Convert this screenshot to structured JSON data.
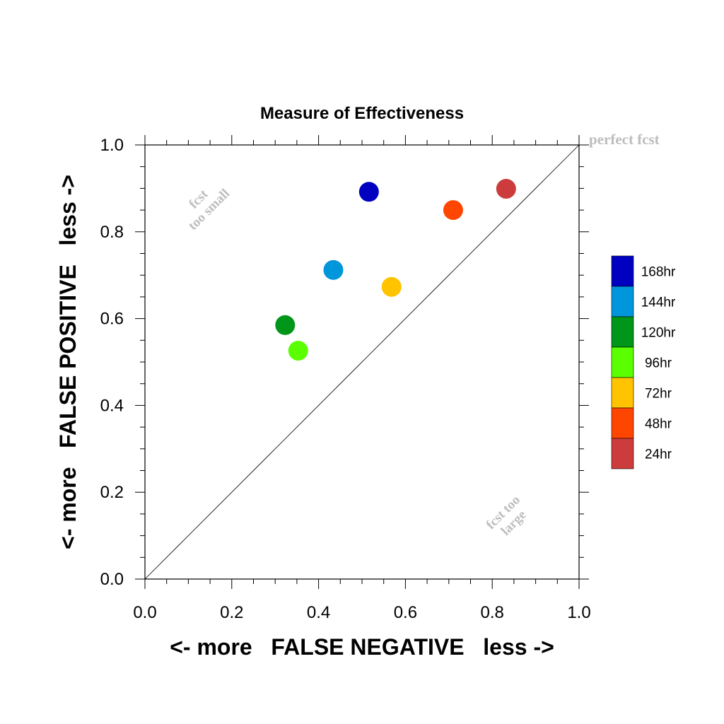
{
  "chart_data": {
    "type": "scatter",
    "title": "Measure of Effectiveness",
    "xlabel": "<- more   FALSE NEGATIVE   less ->",
    "ylabel": "<- more   FALSE POSITIVE   less ->",
    "xlim": [
      0,
      1
    ],
    "ylim": [
      0,
      1
    ],
    "xticks": [
      "0.0",
      "0.2",
      "0.4",
      "0.6",
      "0.8",
      "1.0"
    ],
    "yticks": [
      "0.0",
      "0.2",
      "0.4",
      "0.6",
      "0.8",
      "1.0"
    ],
    "grid": false,
    "diagonal": true,
    "legend_position": "right",
    "annotations": {
      "perfect": "perfect fcst",
      "too_small_1": "fcst",
      "too_small_2": "too small",
      "too_large_1": "fcst too",
      "too_large_2": "large"
    },
    "series": [
      {
        "name": "168hr",
        "color": "#0000c0",
        "x": 0.516,
        "y": 0.892
      },
      {
        "name": "144hr",
        "color": "#0096dc",
        "x": 0.434,
        "y": 0.712
      },
      {
        "name": "120hr",
        "color": "#009619",
        "x": 0.323,
        "y": 0.585
      },
      {
        "name": "96hr",
        "color": "#5aff00",
        "x": 0.353,
        "y": 0.526
      },
      {
        "name": "72hr",
        "color": "#ffc300",
        "x": 0.568,
        "y": 0.673
      },
      {
        "name": "48hr",
        "color": "#ff4600",
        "x": 0.71,
        "y": 0.85
      },
      {
        "name": "24hr",
        "color": "#cd3c3c",
        "x": 0.832,
        "y": 0.899
      }
    ]
  }
}
